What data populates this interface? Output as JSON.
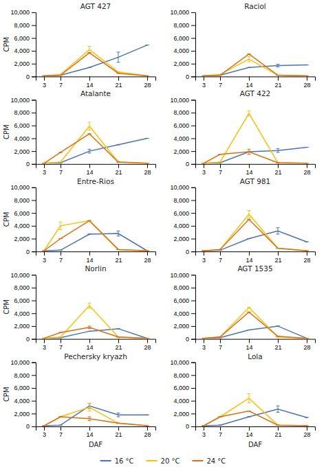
{
  "chart_data": [
    {
      "type": "line",
      "title": "AGT 427",
      "ylabel": "CPM",
      "x": [
        3,
        7,
        14,
        21,
        28
      ],
      "series": [
        {
          "name": "16 °C",
          "color": "#4472c4",
          "values": [
            100,
            200,
            1400,
            3000,
            4900
          ],
          "errors": [
            0,
            0,
            0,
            800,
            0
          ]
        },
        {
          "name": "20 °C",
          "color": "#ffc000",
          "values": [
            100,
            300,
            4200,
            700,
            100
          ],
          "errors": [
            0,
            0,
            500,
            0,
            0
          ]
        },
        {
          "name": "24 °C",
          "color": "#e36c09",
          "values": [
            100,
            200,
            3700,
            500,
            100
          ],
          "errors": [
            0,
            0,
            0,
            0,
            0
          ]
        }
      ],
      "xlim": [
        1,
        30
      ],
      "xticks": [
        3,
        7,
        14,
        21,
        28
      ],
      "ylim": [
        0,
        10000
      ],
      "yticks": [
        0,
        {
          "value": 2000,
          "label": "2,000"
        },
        {
          "value": 4000,
          "label": "4,000"
        },
        {
          "value": 6000,
          "label": "6,000"
        },
        {
          "value": 8000,
          "label": "8,000"
        },
        {
          "value": 10000,
          "label": "10,000"
        }
      ],
      "legend": "bottom"
    },
    {
      "type": "line",
      "title": "Raciol",
      "x": [
        3,
        7,
        14,
        21,
        28
      ],
      "series": [
        {
          "name": "16 °C",
          "color": "#4472c4",
          "values": [
            100,
            200,
            1400,
            1700,
            1800
          ],
          "errors": [
            0,
            0,
            0,
            200,
            0
          ]
        },
        {
          "name": "20 °C",
          "color": "#ffc000",
          "values": [
            100,
            300,
            2700,
            200,
            100
          ],
          "errors": [
            0,
            0,
            400,
            0,
            0
          ]
        },
        {
          "name": "24 °C",
          "color": "#e36c09",
          "values": [
            100,
            200,
            3500,
            200,
            100
          ],
          "errors": [
            0,
            0,
            0,
            0,
            0
          ]
        }
      ],
      "xlim": [
        1,
        30
      ],
      "xticks": [
        3,
        7,
        14,
        21,
        28
      ],
      "ylim": [
        0,
        10000
      ],
      "yticks": [
        0,
        {
          "value": 2000,
          "label": "2,000"
        },
        {
          "value": 4000,
          "label": "4,000"
        },
        {
          "value": 6000,
          "label": "6,000"
        },
        {
          "value": 8000,
          "label": "8,000"
        },
        {
          "value": 10000,
          "label": "10,000"
        }
      ]
    },
    {
      "type": "line",
      "title": "Atalante",
      "ylabel": "CPM",
      "x": [
        3,
        7,
        14,
        21,
        28
      ],
      "series": [
        {
          "name": "16 °C",
          "color": "#4472c4",
          "values": [
            100,
            200,
            2000,
            3000,
            4000
          ],
          "errors": [
            0,
            0,
            300,
            0,
            0
          ]
        },
        {
          "name": "20 °C",
          "color": "#ffc000",
          "values": [
            100,
            300,
            5900,
            300,
            100
          ],
          "errors": [
            0,
            0,
            600,
            0,
            0
          ]
        },
        {
          "name": "24 °C",
          "color": "#e36c09",
          "values": [
            100,
            1800,
            4700,
            300,
            100
          ],
          "errors": [
            0,
            0,
            0,
            0,
            0
          ]
        }
      ],
      "xlim": [
        1,
        30
      ],
      "xticks": [
        3,
        7,
        14,
        21,
        28
      ],
      "ylim": [
        0,
        10000
      ],
      "yticks": [
        0,
        {
          "value": 2000,
          "label": "2,000"
        },
        {
          "value": 4000,
          "label": "4,000"
        },
        {
          "value": 6000,
          "label": "6,000"
        },
        {
          "value": 8000,
          "label": "8,000"
        },
        {
          "value": 10000,
          "label": "10,000"
        }
      ]
    },
    {
      "type": "line",
      "title": "AGT 422",
      "x": [
        3,
        7,
        14,
        21,
        28
      ],
      "series": [
        {
          "name": "16 °C",
          "color": "#4472c4",
          "values": [
            100,
            200,
            1900,
            2100,
            2600
          ],
          "errors": [
            0,
            0,
            0,
            300,
            0
          ]
        },
        {
          "name": "20 °C",
          "color": "#ffc000",
          "values": [
            100,
            300,
            7900,
            200,
            100
          ],
          "errors": [
            0,
            0,
            400,
            0,
            0
          ]
        },
        {
          "name": "24 °C",
          "color": "#e36c09",
          "values": [
            100,
            1500,
            1900,
            200,
            100
          ],
          "errors": [
            0,
            0,
            400,
            0,
            0
          ]
        }
      ],
      "xlim": [
        1,
        30
      ],
      "xticks": [
        3,
        7,
        14,
        21,
        28
      ],
      "ylim": [
        0,
        10000
      ],
      "yticks": [
        0,
        {
          "value": 2000,
          "label": "2,000"
        },
        {
          "value": 4000,
          "label": "4,000"
        },
        {
          "value": 6000,
          "label": "6,000"
        },
        {
          "value": 8000,
          "label": "8,000"
        },
        {
          "value": 10000,
          "label": "10,000"
        }
      ]
    },
    {
      "type": "line",
      "title": "Entre-Rios",
      "ylabel": "CPM",
      "x": [
        3,
        7,
        14,
        21,
        28
      ],
      "series": [
        {
          "name": "16 °C",
          "color": "#4472c4",
          "values": [
            100,
            200,
            2700,
            2800,
            100
          ],
          "errors": [
            0,
            0,
            0,
            400,
            0
          ]
        },
        {
          "name": "20 °C",
          "color": "#ffc000",
          "values": [
            100,
            4000,
            4800,
            300,
            100
          ],
          "errors": [
            0,
            600,
            0,
            0,
            0
          ]
        },
        {
          "name": "24 °C",
          "color": "#e36c09",
          "values": [
            100,
            2000,
            4800,
            300,
            100
          ],
          "errors": [
            0,
            0,
            0,
            0,
            0
          ]
        }
      ],
      "xlim": [
        1,
        30
      ],
      "xticks": [
        3,
        7,
        14,
        21,
        28
      ],
      "ylim": [
        0,
        10000
      ],
      "yticks": [
        0,
        {
          "value": 2000,
          "label": "2,000"
        },
        {
          "value": 4000,
          "label": "4,000"
        },
        {
          "value": 6000,
          "label": "6,000"
        },
        {
          "value": 8000,
          "label": "8,000"
        },
        {
          "value": 10000,
          "label": "10,000"
        }
      ]
    },
    {
      "type": "line",
      "title": "AGT 981",
      "x": [
        3,
        7,
        14,
        21,
        28
      ],
      "series": [
        {
          "name": "16 °C",
          "color": "#4472c4",
          "values": [
            100,
            200,
            2000,
            3200,
            1500
          ],
          "errors": [
            0,
            0,
            0,
            500,
            0
          ]
        },
        {
          "name": "20 °C",
          "color": "#ffc000",
          "values": [
            100,
            300,
            5800,
            500,
            100
          ],
          "errors": [
            0,
            0,
            600,
            0,
            0
          ]
        },
        {
          "name": "24 °C",
          "color": "#e36c09",
          "values": [
            100,
            300,
            5000,
            500,
            100
          ],
          "errors": [
            0,
            0,
            0,
            0,
            0
          ]
        }
      ],
      "xlim": [
        1,
        30
      ],
      "xticks": [
        3,
        7,
        14,
        21,
        28
      ],
      "ylim": [
        0,
        10000
      ],
      "yticks": [
        0,
        {
          "value": 2000,
          "label": "2,000"
        },
        {
          "value": 4000,
          "label": "4,000"
        },
        {
          "value": 6000,
          "label": "6,000"
        },
        {
          "value": 8000,
          "label": "8,000"
        },
        {
          "value": 10000,
          "label": "10,000"
        }
      ]
    },
    {
      "type": "line",
      "title": "Norlin",
      "ylabel": "CPM",
      "x": [
        3,
        7,
        14,
        21,
        28
      ],
      "series": [
        {
          "name": "16 °C",
          "color": "#4472c4",
          "values": [
            100,
            200,
            1200,
            1600,
            100
          ],
          "errors": [
            0,
            0,
            0,
            0,
            0
          ]
        },
        {
          "name": "20 °C",
          "color": "#ffc000",
          "values": [
            100,
            300,
            5200,
            300,
            100
          ],
          "errors": [
            0,
            0,
            400,
            0,
            0
          ]
        },
        {
          "name": "24 °C",
          "color": "#e36c09",
          "values": [
            100,
            1000,
            1800,
            300,
            100
          ],
          "errors": [
            0,
            0,
            200,
            0,
            0
          ]
        }
      ],
      "xlim": [
        1,
        30
      ],
      "xticks": [
        3,
        7,
        14,
        21,
        28
      ],
      "ylim": [
        0,
        10000
      ],
      "yticks": [
        0,
        {
          "value": 2000,
          "label": "2,000"
        },
        {
          "value": 4000,
          "label": "4,000"
        },
        {
          "value": 6000,
          "label": "6,000"
        },
        {
          "value": 8000,
          "label": "8,000"
        },
        {
          "value": 10000,
          "label": "10,000"
        }
      ]
    },
    {
      "type": "line",
      "title": "AGT 1535",
      "x": [
        3,
        7,
        14,
        21,
        28
      ],
      "series": [
        {
          "name": "16 °C",
          "color": "#4472c4",
          "values": [
            100,
            200,
            1400,
            2000,
            100
          ],
          "errors": [
            0,
            0,
            0,
            0,
            0
          ]
        },
        {
          "name": "20 °C",
          "color": "#ffc000",
          "values": [
            100,
            300,
            4900,
            300,
            100
          ],
          "errors": [
            0,
            0,
            0,
            0,
            0
          ]
        },
        {
          "name": "24 °C",
          "color": "#e36c09",
          "values": [
            100,
            300,
            4200,
            400,
            100
          ],
          "errors": [
            0,
            0,
            0,
            0,
            0
          ]
        }
      ],
      "xlim": [
        1,
        30
      ],
      "xticks": [
        3,
        7,
        14,
        21,
        28
      ],
      "ylim": [
        0,
        10000
      ],
      "yticks": [
        0,
        {
          "value": 2000,
          "label": "2,000"
        },
        {
          "value": 4000,
          "label": "4,000"
        },
        {
          "value": 6000,
          "label": "6,000"
        },
        {
          "value": 8000,
          "label": "8,000"
        },
        {
          "value": 10000,
          "label": "10,000"
        }
      ]
    },
    {
      "type": "line",
      "title": "Pechersky kryazh",
      "xlabel": "DAF",
      "ylabel": "CPM",
      "x": [
        3,
        7,
        14,
        21,
        28
      ],
      "series": [
        {
          "name": "16 °C",
          "color": "#4472c4",
          "values": [
            100,
            200,
            3200,
            1800,
            1800
          ],
          "errors": [
            0,
            0,
            400,
            300,
            0
          ]
        },
        {
          "name": "20 °C",
          "color": "#ffc000",
          "values": [
            100,
            1500,
            3000,
            500,
            100
          ],
          "errors": [
            0,
            0,
            600,
            0,
            0
          ]
        },
        {
          "name": "24 °C",
          "color": "#e36c09",
          "values": [
            100,
            1500,
            1200,
            500,
            100
          ],
          "errors": [
            0,
            0,
            300,
            0,
            0
          ]
        }
      ],
      "xlim": [
        1,
        30
      ],
      "xticks": [
        3,
        7,
        14,
        21,
        28
      ],
      "ylim": [
        0,
        10000
      ],
      "yticks": [
        0,
        {
          "value": 2000,
          "label": "2,000"
        },
        {
          "value": 4000,
          "label": "4,000"
        },
        {
          "value": 6000,
          "label": "6,000"
        },
        {
          "value": 8000,
          "label": "8,000"
        },
        {
          "value": 10000,
          "label": "10,000"
        }
      ]
    },
    {
      "type": "line",
      "title": "Lola",
      "xlabel": "DAF",
      "x": [
        3,
        7,
        14,
        21,
        28
      ],
      "series": [
        {
          "name": "16 °C",
          "color": "#4472c4",
          "values": [
            100,
            200,
            1500,
            2700,
            1400
          ],
          "errors": [
            0,
            0,
            0,
            500,
            0
          ]
        },
        {
          "name": "20 °C",
          "color": "#ffc000",
          "values": [
            100,
            1500,
            4400,
            200,
            100
          ],
          "errors": [
            0,
            0,
            700,
            0,
            0
          ]
        },
        {
          "name": "24 °C",
          "color": "#e36c09",
          "values": [
            100,
            1500,
            2400,
            200,
            100
          ],
          "errors": [
            0,
            0,
            0,
            0,
            0
          ]
        }
      ],
      "xlim": [
        1,
        30
      ],
      "xticks": [
        3,
        7,
        14,
        21,
        28
      ],
      "ylim": [
        0,
        10000
      ],
      "yticks": [
        0,
        {
          "value": 2000,
          "label": "2,000"
        },
        {
          "value": 4000,
          "label": "4,000"
        },
        {
          "value": 6000,
          "label": "6,000"
        },
        {
          "value": 8000,
          "label": "8,000"
        },
        {
          "value": 10000,
          "label": "10,000"
        }
      ]
    }
  ]
}
